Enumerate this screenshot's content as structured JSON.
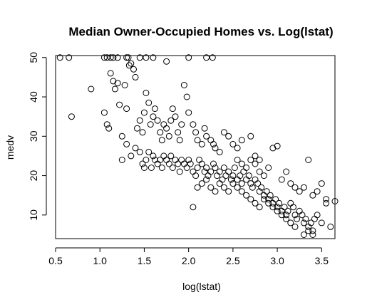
{
  "chart_data": {
    "type": "scatter",
    "title": "Median Owner-Occupied Homes vs. Log(lstat)",
    "xlabel": "log(lstat)",
    "ylabel": "medv",
    "xlim": [
      0.5,
      3.65
    ],
    "ylim": [
      4,
      50.5
    ],
    "x_ticks": [
      0.5,
      1.0,
      1.5,
      2.0,
      2.5,
      3.0,
      3.5
    ],
    "x_tick_labels": [
      "0.5",
      "1.0",
      "1.5",
      "2.0",
      "2.5",
      "3.0",
      "3.5"
    ],
    "y_ticks": [
      10,
      20,
      30,
      40,
      50
    ],
    "y_tick_labels": [
      "10",
      "20",
      "30",
      "40",
      "50"
    ],
    "grid": false,
    "legend": "none",
    "marker": "open-circle",
    "marker_color": "#000000",
    "points": [
      [
        0.55,
        50
      ],
      [
        0.65,
        50
      ],
      [
        1.05,
        50
      ],
      [
        1.08,
        50
      ],
      [
        1.12,
        50
      ],
      [
        1.15,
        50
      ],
      [
        1.2,
        50
      ],
      [
        1.3,
        50
      ],
      [
        1.32,
        50
      ],
      [
        1.45,
        50
      ],
      [
        1.52,
        50
      ],
      [
        1.6,
        50
      ],
      [
        1.75,
        49
      ],
      [
        2.0,
        50
      ],
      [
        2.2,
        50
      ],
      [
        2.27,
        50
      ],
      [
        0.68,
        35
      ],
      [
        0.9,
        42
      ],
      [
        1.05,
        36
      ],
      [
        1.08,
        33
      ],
      [
        1.1,
        32
      ],
      [
        1.12,
        46
      ],
      [
        1.15,
        44
      ],
      [
        1.17,
        42
      ],
      [
        1.2,
        43.5
      ],
      [
        1.22,
        38
      ],
      [
        1.25,
        30
      ],
      [
        1.28,
        43
      ],
      [
        1.3,
        37
      ],
      [
        1.33,
        48
      ],
      [
        1.35,
        48.5
      ],
      [
        1.38,
        47
      ],
      [
        1.4,
        45
      ],
      [
        1.42,
        32
      ],
      [
        1.45,
        34
      ],
      [
        1.48,
        31
      ],
      [
        1.5,
        36
      ],
      [
        1.52,
        41
      ],
      [
        1.55,
        38.5
      ],
      [
        1.57,
        33
      ],
      [
        1.6,
        35
      ],
      [
        1.62,
        37
      ],
      [
        1.65,
        34
      ],
      [
        1.68,
        31
      ],
      [
        1.7,
        29
      ],
      [
        1.72,
        33
      ],
      [
        1.75,
        32
      ],
      [
        1.78,
        30
      ],
      [
        1.8,
        34
      ],
      [
        1.82,
        37
      ],
      [
        1.85,
        35
      ],
      [
        1.88,
        31
      ],
      [
        1.9,
        29
      ],
      [
        1.92,
        33
      ],
      [
        1.95,
        43
      ],
      [
        1.98,
        40
      ],
      [
        2.0,
        36
      ],
      [
        2.05,
        33
      ],
      [
        2.08,
        31
      ],
      [
        2.1,
        29
      ],
      [
        2.15,
        28
      ],
      [
        2.18,
        32
      ],
      [
        2.2,
        30
      ],
      [
        2.25,
        29
      ],
      [
        2.28,
        28
      ],
      [
        2.3,
        27
      ],
      [
        2.35,
        26
      ],
      [
        2.4,
        31
      ],
      [
        2.45,
        30
      ],
      [
        2.5,
        28
      ],
      [
        2.55,
        27
      ],
      [
        2.6,
        29
      ],
      [
        2.7,
        30
      ],
      [
        2.75,
        25
      ],
      [
        2.8,
        24
      ],
      [
        1.25,
        24
      ],
      [
        1.3,
        28
      ],
      [
        1.35,
        25
      ],
      [
        1.4,
        27
      ],
      [
        1.45,
        26
      ],
      [
        1.48,
        23
      ],
      [
        1.5,
        22
      ],
      [
        1.52,
        24
      ],
      [
        1.55,
        26
      ],
      [
        1.58,
        22
      ],
      [
        1.6,
        25
      ],
      [
        1.62,
        24
      ],
      [
        1.65,
        23
      ],
      [
        1.68,
        24
      ],
      [
        1.7,
        22
      ],
      [
        1.72,
        25
      ],
      [
        1.75,
        24
      ],
      [
        1.78,
        23
      ],
      [
        1.8,
        25
      ],
      [
        1.82,
        22
      ],
      [
        1.85,
        24
      ],
      [
        1.88,
        23
      ],
      [
        1.9,
        21
      ],
      [
        1.92,
        24
      ],
      [
        1.95,
        23
      ],
      [
        1.98,
        22
      ],
      [
        2.0,
        24
      ],
      [
        2.02,
        23
      ],
      [
        2.05,
        21
      ],
      [
        2.08,
        20
      ],
      [
        2.1,
        22
      ],
      [
        2.12,
        24
      ],
      [
        2.15,
        23
      ],
      [
        2.18,
        21
      ],
      [
        2.2,
        22
      ],
      [
        2.22,
        20
      ],
      [
        2.25,
        21
      ],
      [
        2.28,
        23
      ],
      [
        2.3,
        22
      ],
      [
        2.32,
        20
      ],
      [
        2.35,
        21
      ],
      [
        2.38,
        19
      ],
      [
        2.4,
        22
      ],
      [
        2.42,
        20
      ],
      [
        2.45,
        21
      ],
      [
        2.48,
        19
      ],
      [
        2.5,
        20
      ],
      [
        2.52,
        22
      ],
      [
        2.55,
        19
      ],
      [
        2.58,
        20
      ],
      [
        2.6,
        18
      ],
      [
        2.62,
        21
      ],
      [
        2.65,
        19
      ],
      [
        2.68,
        20
      ],
      [
        2.7,
        18
      ],
      [
        2.72,
        17
      ],
      [
        2.75,
        19
      ],
      [
        2.78,
        18
      ],
      [
        2.8,
        16
      ],
      [
        2.82,
        17
      ],
      [
        2.85,
        15
      ],
      [
        2.88,
        16
      ],
      [
        2.9,
        14
      ],
      [
        2.92,
        15
      ],
      [
        2.95,
        13
      ],
      [
        2.98,
        14
      ],
      [
        3.0,
        12
      ],
      [
        3.02,
        13
      ],
      [
        3.05,
        11
      ],
      [
        3.08,
        12
      ],
      [
        3.1,
        10
      ],
      [
        3.12,
        11
      ],
      [
        3.15,
        13
      ],
      [
        3.18,
        12
      ],
      [
        3.2,
        10
      ],
      [
        3.22,
        9
      ],
      [
        3.25,
        11
      ],
      [
        3.28,
        10
      ],
      [
        3.3,
        8
      ],
      [
        3.32,
        9
      ],
      [
        3.35,
        7
      ],
      [
        3.38,
        8
      ],
      [
        3.4,
        6
      ],
      [
        3.42,
        9
      ],
      [
        3.45,
        10
      ],
      [
        3.5,
        8
      ],
      [
        3.55,
        13
      ],
      [
        3.6,
        7
      ],
      [
        3.65,
        13.5
      ],
      [
        2.05,
        12
      ],
      [
        2.1,
        17
      ],
      [
        2.15,
        18
      ],
      [
        2.2,
        19
      ],
      [
        2.25,
        17
      ],
      [
        2.3,
        16
      ],
      [
        2.35,
        18
      ],
      [
        2.4,
        17
      ],
      [
        2.45,
        16
      ],
      [
        2.5,
        18
      ],
      [
        2.55,
        17
      ],
      [
        2.6,
        16
      ],
      [
        2.65,
        15
      ],
      [
        2.7,
        14
      ],
      [
        2.75,
        13
      ],
      [
        2.8,
        12
      ],
      [
        2.85,
        14
      ],
      [
        2.9,
        13
      ],
      [
        2.95,
        12
      ],
      [
        3.0,
        11
      ],
      [
        3.05,
        10
      ],
      [
        3.1,
        9
      ],
      [
        3.15,
        8
      ],
      [
        3.2,
        7
      ],
      [
        3.3,
        5
      ],
      [
        3.35,
        6
      ],
      [
        3.4,
        5
      ],
      [
        2.55,
        24
      ],
      [
        2.6,
        23
      ],
      [
        2.65,
        22
      ],
      [
        2.7,
        24
      ],
      [
        2.75,
        23
      ],
      [
        2.8,
        21
      ],
      [
        2.85,
        20
      ],
      [
        2.9,
        22
      ],
      [
        2.95,
        27
      ],
      [
        3.0,
        27.5
      ],
      [
        3.05,
        19
      ],
      [
        3.1,
        21
      ],
      [
        3.15,
        18
      ],
      [
        3.2,
        17
      ],
      [
        3.25,
        16
      ],
      [
        3.3,
        17
      ],
      [
        3.35,
        24
      ],
      [
        3.4,
        15
      ],
      [
        3.45,
        16
      ],
      [
        3.5,
        18
      ],
      [
        3.55,
        14
      ]
    ]
  }
}
